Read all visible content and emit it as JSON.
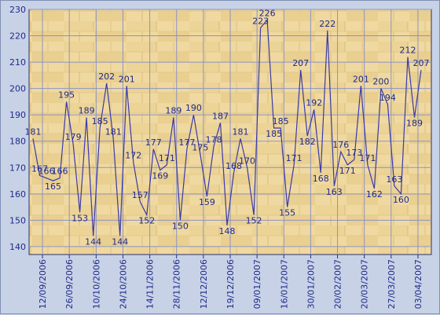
{
  "chart_data": {
    "type": "line",
    "title": "",
    "xlabel": "",
    "ylabel": "",
    "ylim": [
      137,
      230
    ],
    "yticks": [
      140,
      150,
      160,
      170,
      180,
      190,
      200,
      210,
      220,
      230
    ],
    "grid": true,
    "colors": {
      "line": "#3a3aa8",
      "text": "#1f2a8c",
      "grid": "#8c93c4",
      "axis": "#2a2f6c"
    },
    "x_tick_labels": [
      "12/09/2006",
      "26/09/2006",
      "10/10/2006",
      "24/10/2006",
      "14/11/2006",
      "28/11/2006",
      "12/12/2006",
      "19/12/2006",
      "09/01/2007",
      "16/01/2007",
      "30/01/2007",
      "20/02/2007",
      "20/03/2007",
      "27/03/2007",
      "03/04/2007"
    ],
    "series": [
      {
        "name": "",
        "values": [
          181,
          167,
          166,
          165,
          166,
          195,
          179,
          153,
          189,
          144,
          185,
          202,
          181,
          144,
          201,
          172,
          157,
          152,
          177,
          169,
          171,
          189,
          150,
          177,
          190,
          175,
          159,
          178,
          187,
          148,
          168,
          181,
          170,
          152,
          223,
          226,
          185,
          185,
          155,
          171,
          207,
          182,
          192,
          168,
          222,
          163,
          176,
          171,
          173,
          201,
          171,
          162,
          200,
          194,
          163,
          160,
          212,
          189,
          207
        ],
        "labels": [
          "181",
          "167",
          "166",
          "165",
          "166",
          "195",
          "179",
          "153",
          "189",
          "144",
          "185",
          "202",
          "181",
          "144",
          "201",
          "172",
          "157",
          "152",
          "177",
          "169",
          "171",
          "189",
          "150",
          "177",
          "190",
          "175",
          "159",
          "178",
          "187",
          "148",
          "168",
          "181",
          "170",
          "152",
          "223",
          "226",
          "185",
          "185",
          "155",
          "171",
          "207",
          "182",
          "192",
          "168",
          "222",
          "163",
          "176",
          "171",
          "173",
          "201",
          "171",
          "162",
          "200",
          "194",
          "163",
          "160",
          "212",
          "189",
          "207"
        ]
      }
    ]
  }
}
